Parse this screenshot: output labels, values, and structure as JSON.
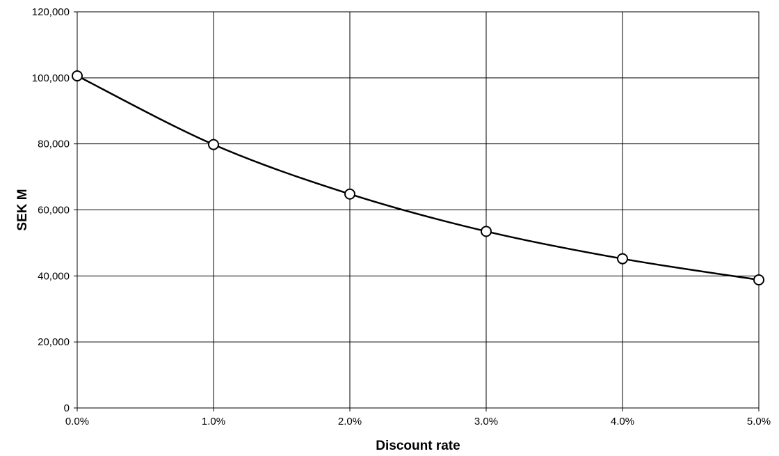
{
  "chart_data": {
    "type": "line",
    "title": "",
    "xlabel": "Discount rate",
    "ylabel": "SEK M",
    "x": [
      0,
      1,
      2,
      3,
      4,
      5
    ],
    "x_tick_labels": [
      "0.0%",
      "1.0%",
      "2.0%",
      "3.0%",
      "4.0%",
      "5.0%"
    ],
    "xlim": [
      0,
      5
    ],
    "ylim": [
      0,
      120000
    ],
    "y_ticks": [
      0,
      20000,
      40000,
      60000,
      80000,
      100000,
      120000
    ],
    "y_tick_labels": [
      "0",
      "20,000",
      "40,000",
      "60,000",
      "80,000",
      "100,000",
      "120,000"
    ],
    "grid": true,
    "legend": "none",
    "series": [
      {
        "values": [
          100600,
          79800,
          64800,
          53500,
          45200,
          38800
        ],
        "color": "#000000",
        "marker": "open-circle",
        "smooth": true
      }
    ]
  }
}
